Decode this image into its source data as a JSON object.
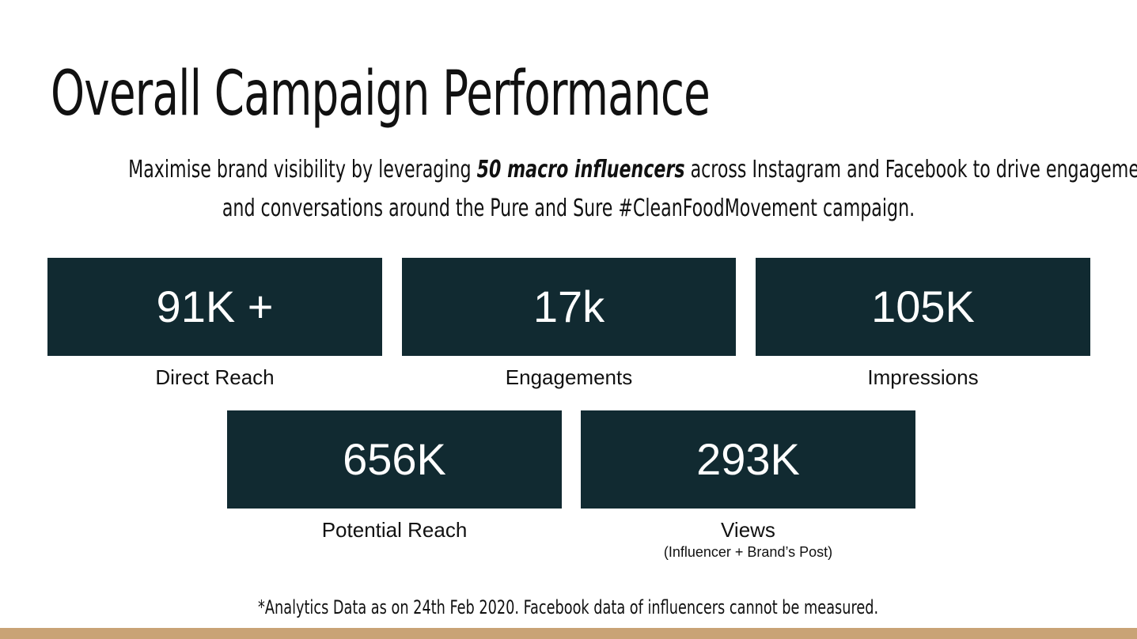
{
  "title": "Overall Campaign Performance",
  "subtitle": {
    "line1_before": "Maximise brand visibility by leveraging ",
    "line1_emphasis": "50 macro influencers",
    "line1_after": " across Instagram and Facebook to drive engagement",
    "line2": "and conversations around the Pure and Sure #CleanFoodMovement campaign."
  },
  "stats": [
    {
      "value": "91K +",
      "label": "Direct Reach"
    },
    {
      "value": "17k",
      "label": "Engagements"
    },
    {
      "value": "105K",
      "label": "Impressions"
    },
    {
      "value": "656K",
      "label": "Potential Reach"
    },
    {
      "value": "293K",
      "label": "Views",
      "sublabel": "(Influencer + Brand’s Post)"
    }
  ],
  "footnote": "*Analytics Data as on 24th Feb 2020. Facebook data of influencers cannot be measured.",
  "colors": {
    "box_background": "#112a31",
    "box_text": "#ffffff",
    "accent_bar": "#c9a376"
  }
}
